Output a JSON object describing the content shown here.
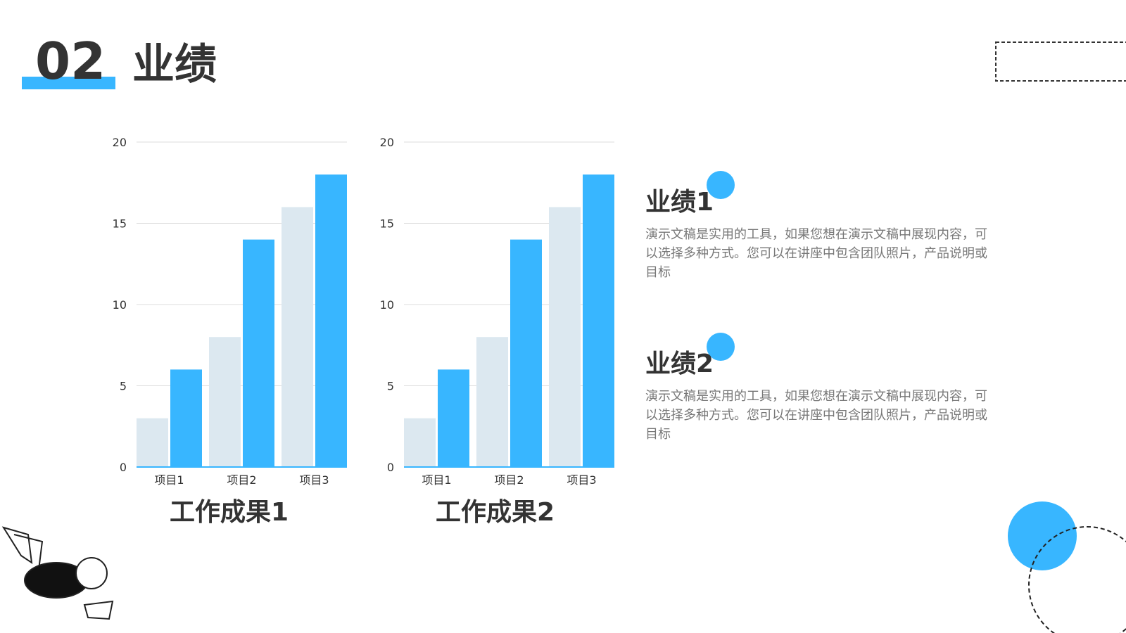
{
  "header": {
    "number": "02",
    "title": "业绩"
  },
  "chart_data": [
    {
      "type": "bar",
      "title": "工作成果1",
      "categories": [
        "项目1",
        "项目2",
        "项目3"
      ],
      "series": [
        {
          "color": "#dce8f0",
          "values": [
            3,
            8,
            16
          ]
        },
        {
          "color": "#38b6ff",
          "values": [
            6,
            14,
            18
          ]
        }
      ],
      "ylim": [
        0,
        20
      ],
      "yticks": [
        0,
        5,
        10,
        15,
        20
      ],
      "grid": true
    },
    {
      "type": "bar",
      "title": "工作成果2",
      "categories": [
        "项目1",
        "项目2",
        "项目3"
      ],
      "series": [
        {
          "color": "#dce8f0",
          "values": [
            3,
            8,
            16
          ]
        },
        {
          "color": "#38b6ff",
          "values": [
            6,
            14,
            18
          ]
        }
      ],
      "ylim": [
        0,
        20
      ],
      "yticks": [
        0,
        5,
        10,
        15,
        20
      ],
      "grid": true
    }
  ],
  "sections": [
    {
      "title": "业绩1",
      "text": "演示文稿是实用的工具，如果您想在演示文稿中展现内容，可以选择多种方式。您可以在讲座中包含团队照片，产品说明或目标"
    },
    {
      "title": "业绩2",
      "text": "演示文稿是实用的工具，如果您想在演示文稿中展现内容，可以选择多种方式。您可以在讲座中包含团队照片，产品说明或目标"
    }
  ]
}
